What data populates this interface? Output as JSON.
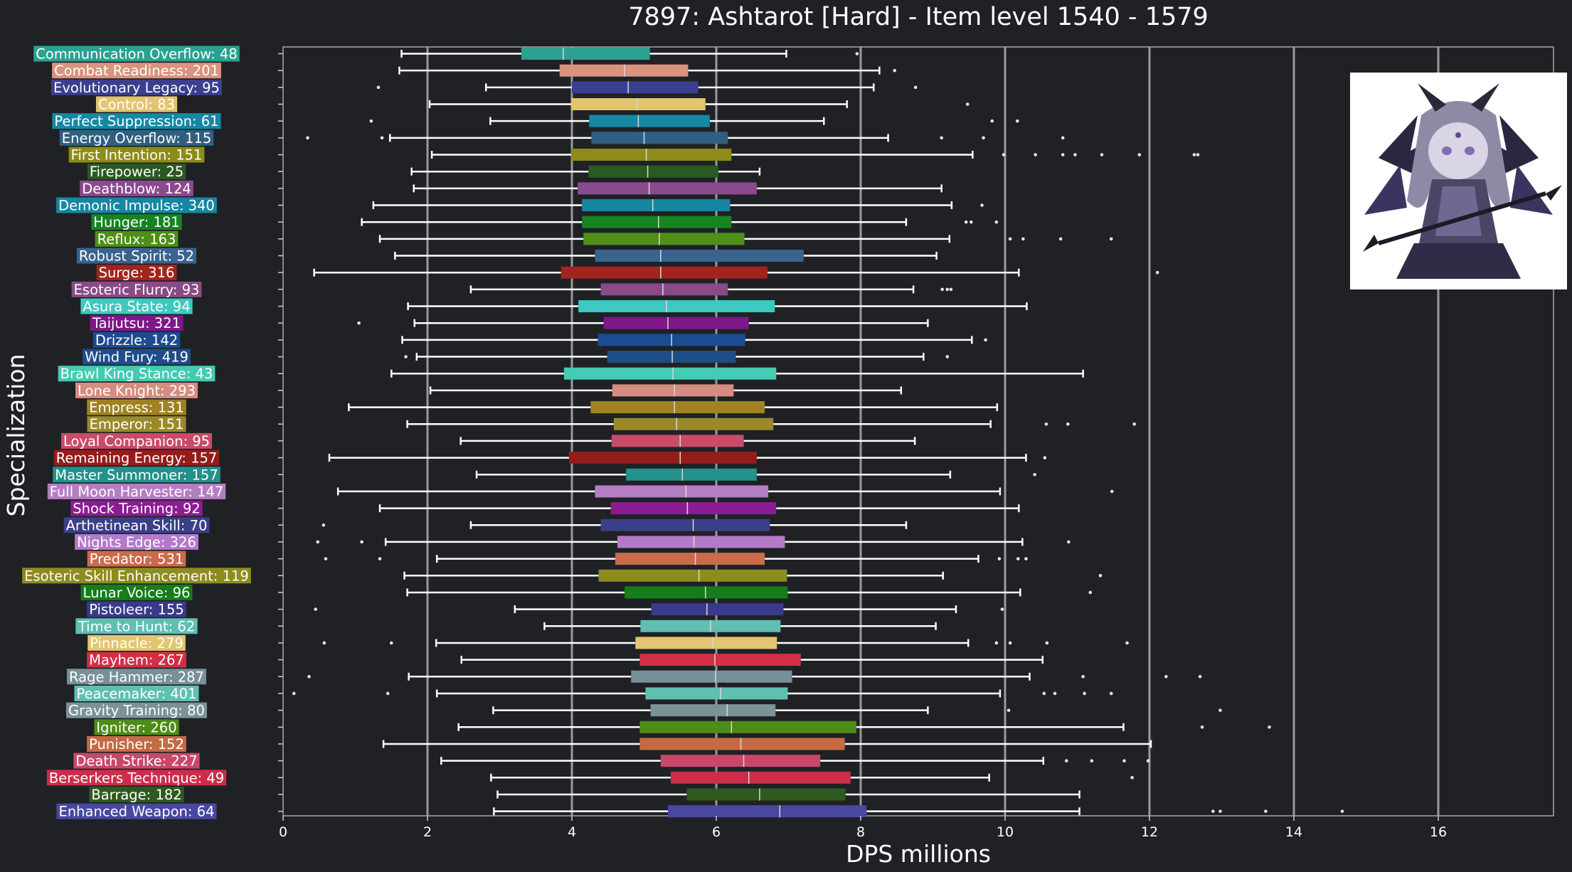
{
  "chart_data": {
    "type": "box",
    "title": "7897: Ashtarot [Hard] - Item level 1540 - 1579",
    "xlabel": "DPS millions",
    "ylabel": "Specialization",
    "xlim": [
      0,
      17.6
    ],
    "xticks": [
      0,
      2,
      4,
      6,
      8,
      10,
      12,
      14,
      16
    ],
    "grid": "vertical, every 2",
    "series": [
      {
        "label": "Communication Overflow: 48",
        "color": "#2ba192",
        "whisker_low": 1.64,
        "q1": 3.3,
        "median": 3.88,
        "q3": 5.08,
        "whisker_high": 6.97,
        "outliers": [
          7.95
        ]
      },
      {
        "label": "Combat Readiness: 201",
        "color": "#d9937e",
        "whisker_low": 1.61,
        "q1": 3.83,
        "median": 4.73,
        "q3": 5.61,
        "whisker_high": 8.26,
        "outliers": [
          8.47
        ]
      },
      {
        "label": "Evolutionary Legacy: 95",
        "color": "#3b3f8f",
        "whisker_low": 2.81,
        "q1": 4.0,
        "median": 4.78,
        "q3": 5.75,
        "whisker_high": 8.18,
        "outliers": [
          1.32,
          8.76
        ]
      },
      {
        "label": "Control: 83",
        "color": "#e3c570",
        "whisker_low": 2.03,
        "q1": 3.99,
        "median": 4.9,
        "q3": 5.85,
        "whisker_high": 7.81,
        "outliers": [
          9.48
        ]
      },
      {
        "label": "Perfect Suppression: 61",
        "color": "#1688a6",
        "whisker_low": 2.87,
        "q1": 4.24,
        "median": 4.92,
        "q3": 5.91,
        "whisker_high": 7.49,
        "outliers": [
          1.22,
          9.82,
          10.17
        ]
      },
      {
        "label": "Energy Overflow: 115",
        "color": "#305f82",
        "whisker_low": 1.48,
        "q1": 4.27,
        "median": 5.0,
        "q3": 6.16,
        "whisker_high": 8.38,
        "outliers": [
          0.34,
          1.37,
          9.12,
          9.7,
          10.8
        ]
      },
      {
        "label": "First Intention: 151",
        "color": "#8d8c18",
        "whisker_low": 2.06,
        "q1": 3.99,
        "median": 5.03,
        "q3": 6.21,
        "whisker_high": 9.55,
        "outliers": [
          9.98,
          10.42,
          10.8,
          10.97,
          11.34,
          11.86,
          12.62,
          12.67
        ]
      },
      {
        "label": "Firepower: 25",
        "color": "#2a5a22",
        "whisker_low": 1.78,
        "q1": 4.23,
        "median": 5.05,
        "q3": 6.03,
        "whisker_high": 6.6,
        "outliers": []
      },
      {
        "label": "Deathblow: 124",
        "color": "#8b4a8f",
        "whisker_low": 1.81,
        "q1": 4.08,
        "median": 5.07,
        "q3": 6.56,
        "whisker_high": 9.12,
        "outliers": []
      },
      {
        "label": "Demonic Impulse: 340",
        "color": "#1786a3",
        "whisker_low": 1.25,
        "q1": 4.14,
        "median": 5.12,
        "q3": 6.19,
        "whisker_high": 9.26,
        "outliers": [
          9.68
        ]
      },
      {
        "label": "Hunger: 181",
        "color": "#178422",
        "whisker_low": 1.09,
        "q1": 4.14,
        "median": 5.2,
        "q3": 6.21,
        "whisker_high": 8.63,
        "outliers": [
          9.46,
          9.53,
          9.88
        ]
      },
      {
        "label": "Reflux: 163",
        "color": "#4d8f17",
        "whisker_low": 1.34,
        "q1": 4.16,
        "median": 5.21,
        "q3": 6.39,
        "whisker_high": 9.23,
        "outliers": [
          10.07,
          10.25,
          10.77,
          11.47
        ]
      },
      {
        "label": "Robust Spirit: 52",
        "color": "#3a638f",
        "whisker_low": 1.55,
        "q1": 4.32,
        "median": 5.23,
        "q3": 7.21,
        "whisker_high": 9.05,
        "outliers": []
      },
      {
        "label": "Surge: 316",
        "color": "#a1241f",
        "whisker_low": 0.43,
        "q1": 3.85,
        "median": 5.23,
        "q3": 6.71,
        "whisker_high": 10.19,
        "outliers": [
          12.11
        ]
      },
      {
        "label": "Esoteric Flurry: 93",
        "color": "#8a4a86",
        "whisker_low": 2.6,
        "q1": 4.4,
        "median": 5.26,
        "q3": 6.16,
        "whisker_high": 8.73,
        "outliers": [
          9.13,
          9.2,
          9.25
        ]
      },
      {
        "label": "Asura State: 94",
        "color": "#3ec9c0",
        "whisker_low": 1.73,
        "q1": 4.09,
        "median": 5.31,
        "q3": 6.81,
        "whisker_high": 10.3,
        "outliers": []
      },
      {
        "label": "Taijutsu: 321",
        "color": "#7e1788",
        "whisker_low": 1.82,
        "q1": 4.44,
        "median": 5.33,
        "q3": 6.45,
        "whisker_high": 8.93,
        "outliers": [
          1.05
        ]
      },
      {
        "label": "Drizzle: 142",
        "color": "#1b4c91",
        "whisker_low": 1.65,
        "q1": 4.36,
        "median": 5.38,
        "q3": 6.4,
        "whisker_high": 9.54,
        "outliers": [
          9.73
        ]
      },
      {
        "label": "Wind Fury: 419",
        "color": "#1e4d8a",
        "whisker_low": 1.85,
        "q1": 4.49,
        "median": 5.39,
        "q3": 6.27,
        "whisker_high": 8.87,
        "outliers": [
          1.7,
          9.2
        ]
      },
      {
        "label": "Brawl King Stance: 43",
        "color": "#44cbb2",
        "whisker_low": 1.5,
        "q1": 3.89,
        "median": 5.4,
        "q3": 6.83,
        "whisker_high": 11.08,
        "outliers": []
      },
      {
        "label": "Lone Knight: 293",
        "color": "#d68c80",
        "whisker_low": 2.04,
        "q1": 4.56,
        "median": 5.42,
        "q3": 6.24,
        "whisker_high": 8.56,
        "outliers": []
      },
      {
        "label": "Empress: 131",
        "color": "#a08222",
        "whisker_low": 0.91,
        "q1": 4.26,
        "median": 5.42,
        "q3": 6.67,
        "whisker_high": 9.89,
        "outliers": []
      },
      {
        "label": "Emperor: 151",
        "color": "#9a8a2a",
        "whisker_low": 1.72,
        "q1": 4.58,
        "median": 5.45,
        "q3": 6.79,
        "whisker_high": 9.8,
        "outliers": [
          10.57,
          10.87,
          11.79
        ]
      },
      {
        "label": "Loyal Companion: 95",
        "color": "#c94b6a",
        "whisker_low": 2.46,
        "q1": 4.55,
        "median": 5.5,
        "q3": 6.38,
        "whisker_high": 8.75,
        "outliers": []
      },
      {
        "label": "Remaining Energy: 157",
        "color": "#961b1b",
        "whisker_low": 0.64,
        "q1": 3.96,
        "median": 5.5,
        "q3": 6.56,
        "whisker_high": 10.29,
        "outliers": [
          10.55
        ]
      },
      {
        "label": "Master Summoner: 157",
        "color": "#24918b",
        "whisker_low": 2.68,
        "q1": 4.75,
        "median": 5.53,
        "q3": 6.56,
        "whisker_high": 9.24,
        "outliers": [
          10.41
        ]
      },
      {
        "label": "Full Moon Harvester: 147",
        "color": "#b57dc4",
        "whisker_low": 0.76,
        "q1": 4.32,
        "median": 5.58,
        "q3": 6.72,
        "whisker_high": 9.93,
        "outliers": [
          11.48
        ]
      },
      {
        "label": "Shock Training: 92",
        "color": "#8c1c94",
        "whisker_low": 1.34,
        "q1": 4.54,
        "median": 5.6,
        "q3": 6.83,
        "whisker_high": 10.19,
        "outliers": []
      },
      {
        "label": "Arthetinean Skill: 70",
        "color": "#3b3f88",
        "whisker_low": 2.6,
        "q1": 4.4,
        "median": 5.68,
        "q3": 6.74,
        "whisker_high": 8.63,
        "outliers": [
          0.56
        ]
      },
      {
        "label": "Nights Edge: 326",
        "color": "#b579c9",
        "whisker_low": 1.42,
        "q1": 4.63,
        "median": 5.69,
        "q3": 6.95,
        "whisker_high": 10.24,
        "outliers": [
          0.48,
          1.09,
          10.88
        ]
      },
      {
        "label": "Predator: 531",
        "color": "#cc6a4c",
        "whisker_low": 2.13,
        "q1": 4.6,
        "median": 5.71,
        "q3": 6.67,
        "whisker_high": 9.63,
        "outliers": [
          0.59,
          1.34,
          9.92,
          10.18,
          10.29
        ]
      },
      {
        "label": "Esoteric Skill Enhancement: 119",
        "color": "#8d8c1e",
        "whisker_low": 1.68,
        "q1": 4.37,
        "median": 5.76,
        "q3": 6.98,
        "whisker_high": 9.14,
        "outliers": [
          11.32
        ]
      },
      {
        "label": "Lunar Voice: 96",
        "color": "#157d1a",
        "whisker_low": 1.72,
        "q1": 4.73,
        "median": 5.85,
        "q3": 6.99,
        "whisker_high": 10.21,
        "outliers": [
          11.18
        ]
      },
      {
        "label": "Pistoleer: 155",
        "color": "#3a3a8c",
        "whisker_low": 3.21,
        "q1": 5.1,
        "median": 5.87,
        "q3": 6.93,
        "whisker_high": 9.32,
        "outliers": [
          0.45,
          9.96
        ]
      },
      {
        "label": "Time to Hunt: 62",
        "color": "#5fbfb2",
        "whisker_low": 3.62,
        "q1": 4.95,
        "median": 5.92,
        "q3": 6.89,
        "whisker_high": 9.04,
        "outliers": []
      },
      {
        "label": "Pinnacle: 279",
        "color": "#e3c571",
        "whisker_low": 2.12,
        "q1": 4.88,
        "median": 5.95,
        "q3": 6.84,
        "whisker_high": 9.49,
        "outliers": [
          0.57,
          1.5,
          9.88,
          10.07,
          10.58,
          11.69
        ]
      },
      {
        "label": "Mayhem: 267",
        "color": "#d22e45",
        "whisker_low": 2.47,
        "q1": 4.94,
        "median": 5.98,
        "q3": 7.17,
        "whisker_high": 10.52,
        "outliers": []
      },
      {
        "label": "Rage Hammer: 287",
        "color": "#78909a",
        "whisker_low": 1.74,
        "q1": 4.82,
        "median": 5.99,
        "q3": 7.05,
        "whisker_high": 10.34,
        "outliers": [
          0.36,
          11.08,
          12.23,
          12.7
        ]
      },
      {
        "label": "Peacemaker: 401",
        "color": "#5fc0b0",
        "whisker_low": 2.13,
        "q1": 5.02,
        "median": 6.06,
        "q3": 6.99,
        "whisker_high": 9.93,
        "outliers": [
          0.15,
          1.45,
          10.54,
          10.69,
          11.1,
          11.47
        ]
      },
      {
        "label": "Gravity Training: 80",
        "color": "#7b9396",
        "whisker_low": 2.91,
        "q1": 5.09,
        "median": 6.15,
        "q3": 6.82,
        "whisker_high": 8.93,
        "outliers": [
          10.05,
          12.98
        ]
      },
      {
        "label": "Igniter: 260",
        "color": "#4d8c16",
        "whisker_low": 2.43,
        "q1": 4.94,
        "median": 6.21,
        "q3": 7.94,
        "whisker_high": 11.64,
        "outliers": [
          12.73,
          13.66
        ]
      },
      {
        "label": "Punisher: 152",
        "color": "#c56a45",
        "whisker_low": 1.39,
        "q1": 4.94,
        "median": 6.34,
        "q3": 7.78,
        "whisker_high": 12.02,
        "outliers": []
      },
      {
        "label": "Death Strike: 227",
        "color": "#c9486a",
        "whisker_low": 2.19,
        "q1": 5.23,
        "median": 6.38,
        "q3": 7.44,
        "whisker_high": 10.53,
        "outliers": [
          10.85,
          11.2,
          11.65,
          11.98
        ]
      },
      {
        "label": "Berserkers Technique: 49",
        "color": "#cc2d4a",
        "whisker_low": 2.88,
        "q1": 5.37,
        "median": 6.45,
        "q3": 7.86,
        "whisker_high": 9.78,
        "outliers": [
          11.76
        ]
      },
      {
        "label": "Barrage: 182",
        "color": "#2f5a1f",
        "whisker_low": 2.97,
        "q1": 5.59,
        "median": 6.6,
        "q3": 7.79,
        "whisker_high": 11.03,
        "outliers": []
      },
      {
        "label": "Enhanced Weapon: 64",
        "color": "#4848a0",
        "whisker_low": 2.92,
        "q1": 5.33,
        "median": 6.88,
        "q3": 8.08,
        "whisker_high": 11.03,
        "outliers": [
          12.88,
          12.98,
          13.61,
          14.67
        ]
      }
    ]
  },
  "portrait": {
    "icon": "ashtarot-boss-portrait"
  }
}
